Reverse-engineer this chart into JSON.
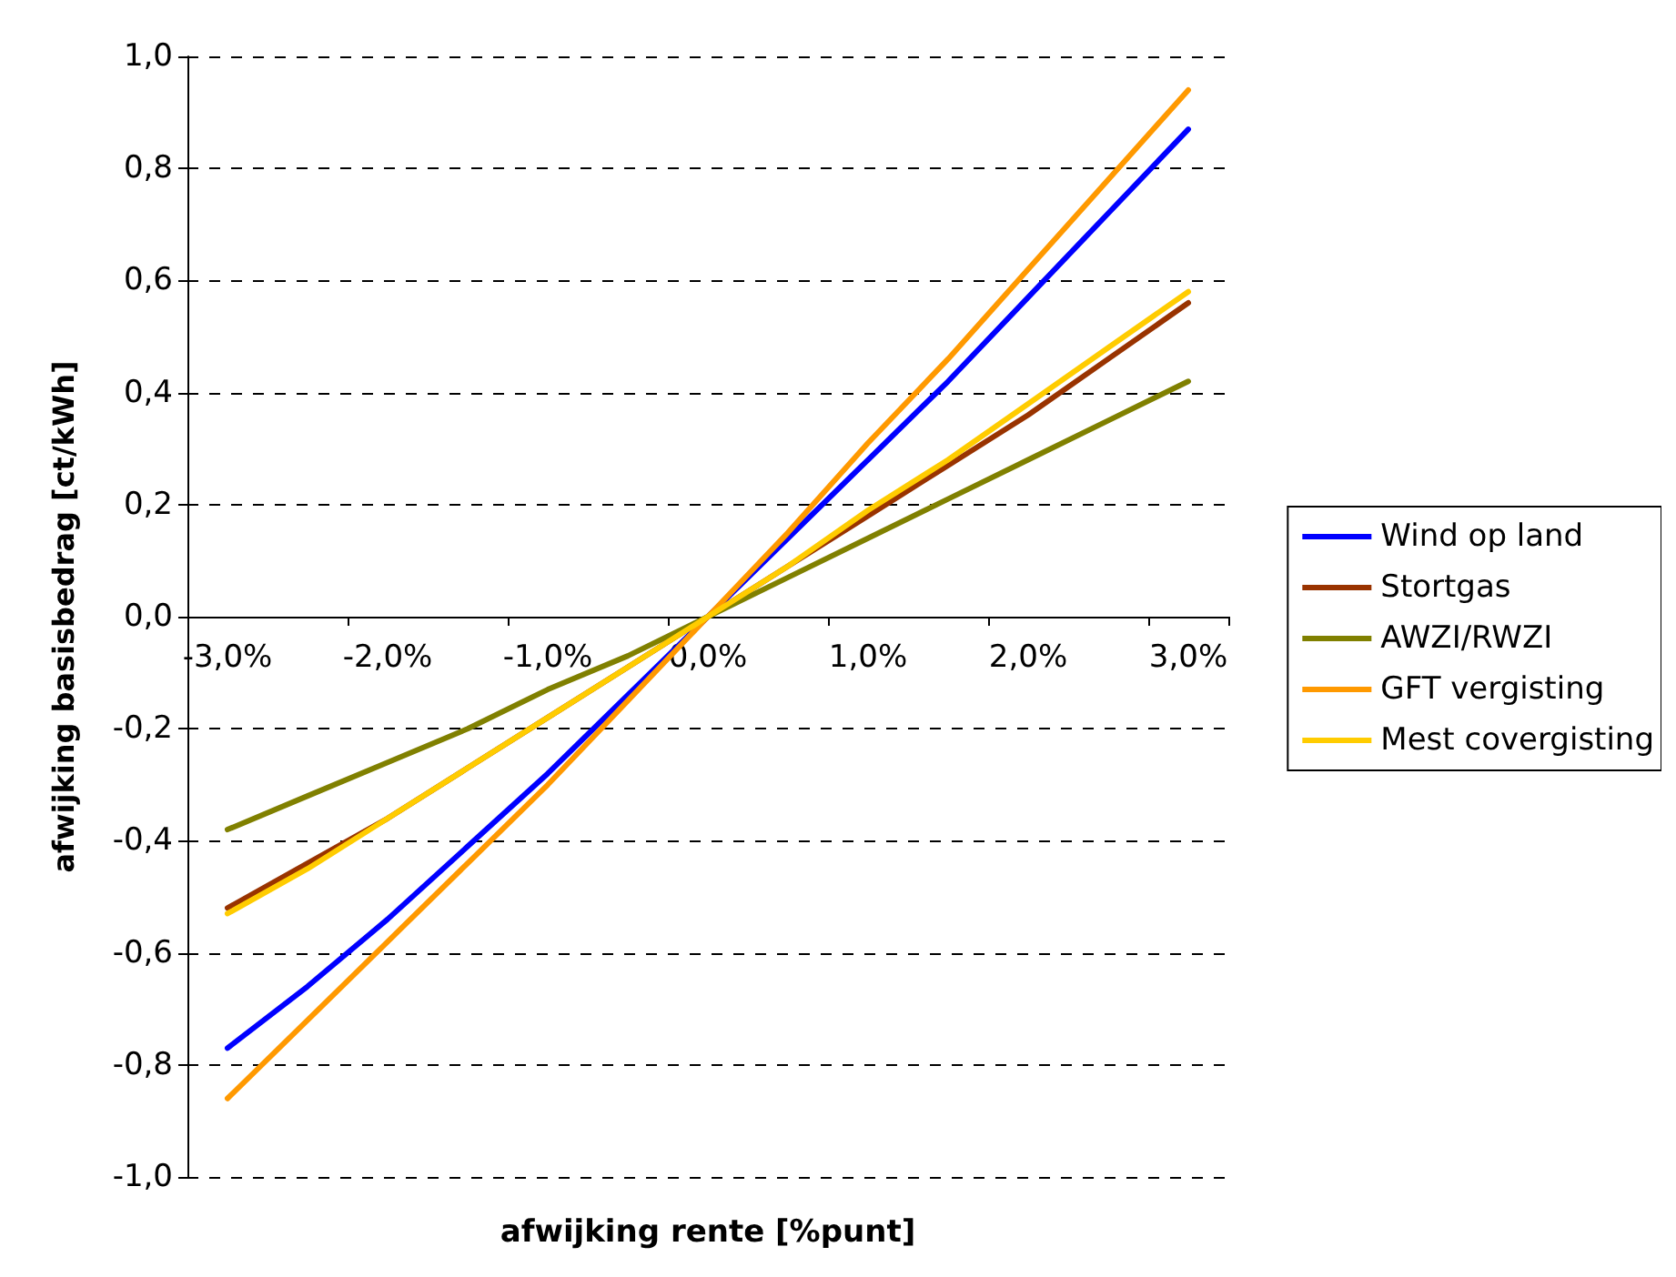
{
  "chart_data": {
    "type": "line",
    "xlabel": "afwijking rente [%punt]",
    "ylabel": "afwijking basisbedrag [ct/kWh]",
    "categories": [
      "-3,0%",
      null,
      "-2,0%",
      null,
      "-1,0%",
      null,
      "0,0%",
      null,
      "1,0%",
      null,
      "2,0%",
      null,
      "3,0%"
    ],
    "series": [
      {
        "name": "Wind op land",
        "color": "#0000ff",
        "values": [
          -0.77,
          -0.66,
          -0.54,
          -0.41,
          -0.28,
          -0.14,
          0,
          0.14,
          0.28,
          0.42,
          0.57,
          0.72,
          0.87
        ]
      },
      {
        "name": "Stortgas",
        "color": "#993300",
        "values": [
          -0.52,
          -0.44,
          -0.36,
          -0.27,
          -0.18,
          -0.09,
          0,
          0.09,
          0.18,
          0.27,
          0.36,
          0.46,
          0.56
        ]
      },
      {
        "name": "AWZI/RWZI",
        "color": "#808000",
        "values": [
          -0.38,
          -0.32,
          -0.26,
          -0.2,
          -0.13,
          -0.07,
          0,
          0.07,
          0.14,
          0.21,
          0.28,
          0.35,
          0.42
        ]
      },
      {
        "name": "GFT vergisting",
        "color": "#ff9900",
        "values": [
          -0.86,
          -0.72,
          -0.58,
          -0.44,
          -0.3,
          -0.15,
          0,
          0.15,
          0.31,
          0.46,
          0.62,
          0.78,
          0.94
        ]
      },
      {
        "name": "Mest covergisting",
        "color": "#ffcc00",
        "values": [
          -0.53,
          -0.45,
          -0.36,
          -0.27,
          -0.18,
          -0.09,
          0,
          0.09,
          0.19,
          0.28,
          0.38,
          0.48,
          0.58
        ]
      }
    ],
    "ylim": [
      -1,
      1
    ],
    "yticks": [
      {
        "value": -1,
        "label": "-1,0"
      },
      {
        "value": -0.8,
        "label": "-0,8"
      },
      {
        "value": -0.6,
        "label": "-0,6"
      },
      {
        "value": -0.4,
        "label": "-0,4"
      },
      {
        "value": -0.2,
        "label": "-0,2"
      },
      {
        "value": 0,
        "label": "0,0"
      },
      {
        "value": 0.2,
        "label": "0,2"
      },
      {
        "value": 0.4,
        "label": "0,4"
      },
      {
        "value": 0.6,
        "label": "0,6"
      },
      {
        "value": 0.8,
        "label": "0,8"
      },
      {
        "value": 1,
        "label": "1,0"
      }
    ],
    "grid": "y",
    "legend": "right",
    "marker": "none",
    "line_style": "solid"
  }
}
